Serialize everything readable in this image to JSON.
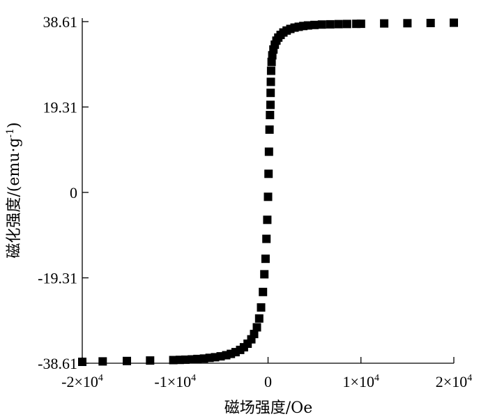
{
  "chart_data": {
    "type": "scatter",
    "xlabel": "磁场强度/Oe",
    "ylabel_main": "磁化强度/(emu·g",
    "ylabel_sup": "-1",
    "ylabel_close": ")",
    "xlim": [
      -20000,
      20000
    ],
    "ylim": [
      -38.61,
      38.61
    ],
    "grid": false,
    "legend": "none",
    "marker": "square",
    "color": "#000000",
    "x_ticks": [
      {
        "value": -20000,
        "mantissa": "-2×10",
        "exp": "4"
      },
      {
        "value": -10000,
        "mantissa": "-1×10",
        "exp": "4"
      },
      {
        "value": 0,
        "mantissa": "0",
        "exp": ""
      },
      {
        "value": 10000,
        "mantissa": "1×10",
        "exp": "4"
      },
      {
        "value": 20000,
        "mantissa": "2×10",
        "exp": "4"
      }
    ],
    "y_ticks": [
      {
        "value": 38.61,
        "label": "38.61"
      },
      {
        "value": 19.31,
        "label": "19.31"
      },
      {
        "value": 0,
        "label": "0"
      },
      {
        "value": -19.31,
        "label": "-19.31"
      },
      {
        "value": -38.61,
        "label": "-38.61"
      }
    ],
    "series": [
      {
        "points": [
          [
            -20000,
            -38.3
          ],
          [
            -17800,
            -38.2
          ],
          [
            -15200,
            -38.1
          ],
          [
            -12700,
            -38.0
          ],
          [
            -10200,
            -37.9
          ],
          [
            -9500,
            -37.85
          ],
          [
            -8900,
            -37.8
          ],
          [
            -8200,
            -37.75
          ],
          [
            -7600,
            -37.65
          ],
          [
            -6900,
            -37.55
          ],
          [
            -6300,
            -37.4
          ],
          [
            -5700,
            -37.25
          ],
          [
            -5100,
            -37.05
          ],
          [
            -4500,
            -36.8
          ],
          [
            -4000,
            -36.5
          ],
          [
            -3500,
            -36.1
          ],
          [
            -3000,
            -35.6
          ],
          [
            -2600,
            -35.0
          ],
          [
            -2200,
            -34.2
          ],
          [
            -1800,
            -33.2
          ],
          [
            -1500,
            -32.0
          ],
          [
            -1200,
            -30.5
          ],
          [
            -950,
            -28.5
          ],
          [
            -750,
            -26.0
          ],
          [
            -550,
            -22.5
          ],
          [
            -400,
            -18.5
          ],
          [
            -270,
            -15.0
          ],
          [
            -170,
            -10.5
          ],
          [
            -80,
            -6.2
          ],
          [
            0,
            -1.0
          ],
          [
            50,
            4.2
          ],
          [
            100,
            9.2
          ],
          [
            160,
            14.2
          ],
          [
            210,
            17.5
          ],
          [
            260,
            19.8
          ],
          [
            280,
            22.5
          ],
          [
            300,
            25.0
          ],
          [
            330,
            27.5
          ],
          [
            380,
            29.5
          ],
          [
            460,
            31.0
          ],
          [
            580,
            32.3
          ],
          [
            730,
            33.4
          ],
          [
            900,
            34.3
          ],
          [
            1100,
            35.0
          ],
          [
            1350,
            35.6
          ],
          [
            1650,
            36.15
          ],
          [
            2000,
            36.6
          ],
          [
            2400,
            36.95
          ],
          [
            2850,
            37.25
          ],
          [
            3300,
            37.45
          ],
          [
            3800,
            37.62
          ],
          [
            4300,
            37.75
          ],
          [
            5000,
            37.85
          ],
          [
            5800,
            37.95
          ],
          [
            6700,
            38.0
          ],
          [
            7600,
            38.05
          ],
          [
            8500,
            38.08
          ],
          [
            9500,
            38.1
          ],
          [
            10000,
            38.12
          ],
          [
            12500,
            38.2
          ],
          [
            15000,
            38.25
          ],
          [
            17500,
            38.3
          ],
          [
            20000,
            38.35
          ]
        ]
      }
    ]
  }
}
